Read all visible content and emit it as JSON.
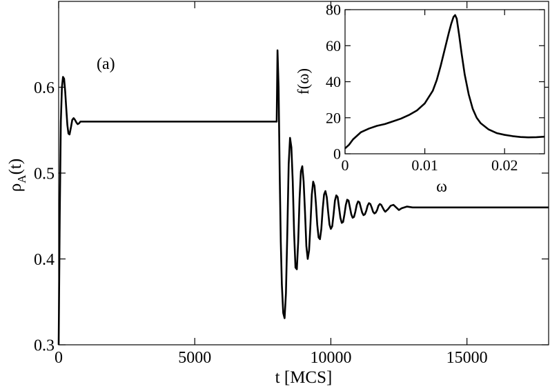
{
  "chart_data": [
    {
      "type": "line",
      "panel_label": "(a)",
      "xlabel": "t [MCS]",
      "ylabel_main": "ρ",
      "ylabel_sub": "A",
      "ylabel_suffix": "(t)",
      "xlim": [
        0,
        18000
      ],
      "ylim": [
        0.3,
        0.7
      ],
      "xticks": [
        0,
        5000,
        10000,
        15000
      ],
      "xtick_labels": [
        "0",
        "5000",
        "10000",
        "15000"
      ],
      "yticks": [
        0.3,
        0.4,
        0.5,
        0.6
      ],
      "ytick_labels": [
        "0.3",
        "0.4",
        "0.5",
        "0.6"
      ],
      "grid": false,
      "series": [
        {
          "color": "#000000",
          "x": [
            0,
            40,
            80,
            120,
            160,
            200,
            240,
            280,
            320,
            360,
            400,
            450,
            500,
            550,
            600,
            650,
            700,
            750,
            800,
            900,
            1000,
            2000,
            3000,
            4000,
            5000,
            6000,
            7000,
            7990,
            8010,
            8040,
            8080,
            8120,
            8160,
            8200,
            8250,
            8300,
            8350,
            8400,
            8450,
            8500,
            8550,
            8600,
            8650,
            8700,
            8750,
            8800,
            8850,
            8900,
            8950,
            9000,
            9050,
            9100,
            9150,
            9200,
            9250,
            9300,
            9350,
            9400,
            9450,
            9500,
            9550,
            9600,
            9650,
            9700,
            9750,
            9800,
            9850,
            9900,
            9950,
            10000,
            10050,
            10100,
            10150,
            10200,
            10250,
            10300,
            10350,
            10400,
            10450,
            10500,
            10550,
            10600,
            10650,
            10700,
            10750,
            10800,
            10850,
            10900,
            10950,
            11000,
            11050,
            11100,
            11150,
            11200,
            11250,
            11300,
            11350,
            11400,
            11450,
            11500,
            11550,
            11600,
            11650,
            11700,
            11750,
            11800,
            11850,
            11900,
            11950,
            12000,
            12100,
            12200,
            12300,
            12400,
            12500,
            12600,
            12800,
            13000,
            14000,
            15000,
            16000,
            17000,
            18000
          ],
          "y": [
            0.3,
            0.45,
            0.56,
            0.6,
            0.612,
            0.61,
            0.595,
            0.575,
            0.556,
            0.546,
            0.545,
            0.553,
            0.562,
            0.564,
            0.562,
            0.559,
            0.557,
            0.558,
            0.56,
            0.56,
            0.56,
            0.56,
            0.56,
            0.56,
            0.56,
            0.56,
            0.56,
            0.56,
            0.56,
            0.643,
            0.6,
            0.5,
            0.42,
            0.37,
            0.337,
            0.331,
            0.36,
            0.43,
            0.51,
            0.541,
            0.53,
            0.49,
            0.43,
            0.39,
            0.388,
            0.42,
            0.47,
            0.502,
            0.508,
            0.49,
            0.455,
            0.415,
            0.4,
            0.41,
            0.44,
            0.475,
            0.49,
            0.485,
            0.465,
            0.44,
            0.425,
            0.423,
            0.435,
            0.458,
            0.475,
            0.479,
            0.472,
            0.455,
            0.44,
            0.435,
            0.438,
            0.452,
            0.468,
            0.474,
            0.472,
            0.46,
            0.448,
            0.442,
            0.443,
            0.452,
            0.463,
            0.469,
            0.468,
            0.46,
            0.452,
            0.448,
            0.449,
            0.455,
            0.463,
            0.467,
            0.466,
            0.46,
            0.454,
            0.451,
            0.452,
            0.456,
            0.462,
            0.465,
            0.464,
            0.46,
            0.455,
            0.453,
            0.454,
            0.457,
            0.462,
            0.464,
            0.463,
            0.46,
            0.457,
            0.455,
            0.458,
            0.462,
            0.463,
            0.46,
            0.457,
            0.459,
            0.461,
            0.46,
            0.46,
            0.46,
            0.46,
            0.46,
            0.46
          ]
        }
      ]
    },
    {
      "type": "line",
      "inset": true,
      "xlabel": "ω",
      "ylabel": "f(ω)",
      "xlim": [
        0,
        0.025
      ],
      "ylim": [
        0,
        80
      ],
      "xticks": [
        0,
        0.01,
        0.02
      ],
      "xtick_labels": [
        "0",
        "0.01",
        "0.02"
      ],
      "yticks": [
        0,
        20,
        40,
        60,
        80
      ],
      "ytick_labels": [
        "0",
        "20",
        "40",
        "60",
        "80"
      ],
      "grid": false,
      "series": [
        {
          "color": "#000000",
          "x": [
            0,
            0.0005,
            0.001,
            0.0015,
            0.002,
            0.003,
            0.004,
            0.005,
            0.006,
            0.007,
            0.008,
            0.009,
            0.01,
            0.011,
            0.0115,
            0.012,
            0.0125,
            0.013,
            0.0133,
            0.0136,
            0.0138,
            0.014,
            0.0143,
            0.0146,
            0.015,
            0.0155,
            0.016,
            0.0165,
            0.017,
            0.018,
            0.019,
            0.02,
            0.021,
            0.022,
            0.023,
            0.024,
            0.025
          ],
          "y": [
            3,
            5,
            8,
            10,
            12,
            14,
            15.5,
            16.5,
            18,
            19.5,
            21.5,
            24,
            28,
            35,
            41,
            49,
            58,
            67,
            72,
            76,
            77,
            75,
            66,
            56,
            44,
            33,
            25,
            20,
            17,
            13.5,
            11.5,
            10.5,
            9.8,
            9.3,
            9.1,
            9.2,
            9.5
          ]
        }
      ]
    }
  ]
}
